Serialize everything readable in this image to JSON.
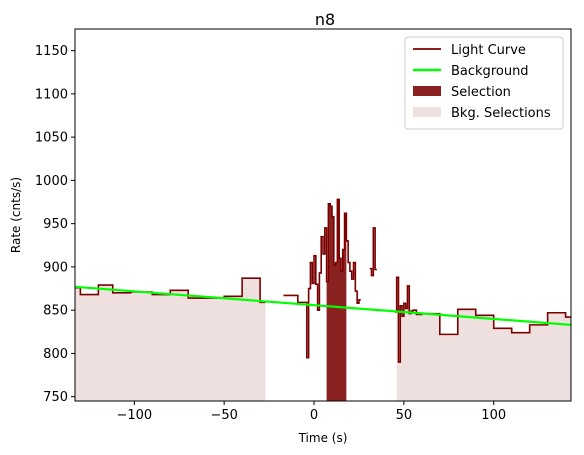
{
  "chart_data": {
    "type": "line",
    "title": "n8",
    "xlabel": "Time (s)",
    "ylabel": "Rate (cnts/s)",
    "xlim": [
      -133,
      143
    ],
    "ylim": [
      745,
      1175
    ],
    "xticks": [
      -100,
      -50,
      0,
      50,
      100
    ],
    "yticks": [
      750,
      800,
      850,
      900,
      950,
      1000,
      1050,
      1100,
      1150
    ],
    "grid": false,
    "legend_position": "top-right",
    "colors": {
      "light_curve": "#7a0000",
      "background": "#00ff00",
      "selection": "#8b2222",
      "bkg_selection": "#efe0e0"
    },
    "legend": [
      {
        "label": "Light Curve",
        "kind": "line",
        "color": "#7a0000"
      },
      {
        "label": "Background",
        "kind": "line",
        "color": "#00ff00"
      },
      {
        "label": "Selection",
        "kind": "patch",
        "color": "#8b2222"
      },
      {
        "label": "Bkg. Selections",
        "kind": "patch",
        "color": "#efe0e0"
      }
    ],
    "background_line": {
      "x": [
        -133,
        143
      ],
      "y": [
        877,
        833
      ]
    },
    "selection_range": [
      7,
      18
    ],
    "bkg_selection_ranges": [
      [
        -133,
        -27
      ],
      [
        46,
        143
      ]
    ],
    "light_curve_segments": [
      {
        "edges": [
          -133,
          -130,
          -120,
          -112,
          -102,
          -90,
          -80,
          -70,
          -60,
          -50,
          -40,
          -30,
          -27
        ],
        "values": [
          876,
          868,
          879,
          870,
          871,
          868,
          873,
          864,
          864,
          866,
          887,
          859
        ]
      },
      {
        "edges": [
          -17,
          -9,
          -4,
          -3,
          -2,
          -1,
          0,
          1,
          2,
          3,
          4,
          5,
          6,
          7,
          8,
          9,
          10,
          11,
          12,
          13,
          14,
          15,
          16,
          17,
          18,
          19,
          20,
          21,
          22,
          23,
          24,
          25,
          26
        ],
        "values": [
          867,
          859,
          795,
          875,
          905,
          881,
          913,
          880,
          850,
          893,
          935,
          915,
          945,
          883,
          973,
          970,
          958,
          902,
          905,
          978,
          910,
          895,
          920,
          962,
          930,
          905,
          895,
          886,
          905,
          872,
          858,
          862
        ]
      },
      {
        "edges": [
          31,
          32,
          33,
          34,
          35
        ],
        "values": [
          898,
          890,
          945,
          897
        ]
      },
      {
        "edges": [
          45,
          46,
          47,
          48,
          49,
          50,
          51,
          52,
          53,
          54,
          55,
          57,
          60,
          70,
          80,
          90,
          100,
          110,
          120,
          130,
          140,
          143
        ],
        "values": [
          848,
          888,
          790,
          855,
          843,
          858,
          852,
          878,
          846,
          849,
          850,
          845,
          846,
          822,
          851,
          844,
          829,
          824,
          833,
          847,
          842
        ]
      }
    ]
  }
}
